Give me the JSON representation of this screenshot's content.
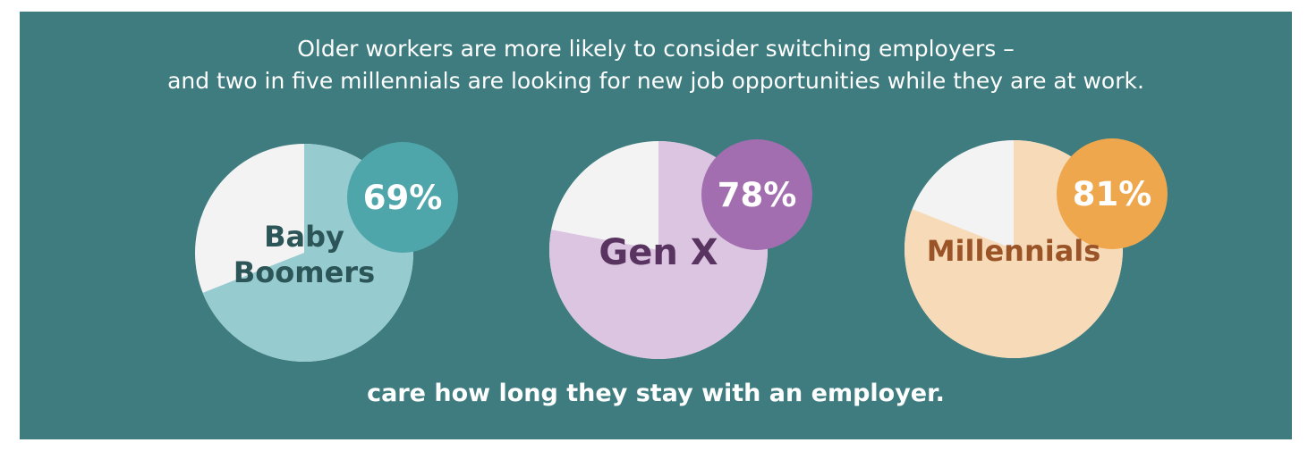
{
  "headline": {
    "line1": "Older workers are more likely to consider switching employers –",
    "line2": "and two in five millennials are looking for new job opportunities while they are at work."
  },
  "footer": "care how long they stay with an employer.",
  "colors": {
    "background": "#3e7c7f",
    "remainder": "#f3f3f3"
  },
  "chart_data": {
    "type": "pie",
    "pies": [
      {
        "name_lines": [
          "Baby",
          "Boomers"
        ],
        "value": 69,
        "value_label": "69%",
        "slice_color": "#96ccd0",
        "badge_color": "#4fa6aa",
        "name_color": "#2c5558"
      },
      {
        "name_lines": [
          "Gen X"
        ],
        "value": 78,
        "value_label": "78%",
        "slice_color": "#dbc5e1",
        "badge_color": "#a36eb0",
        "name_color": "#5a3460"
      },
      {
        "name_lines": [
          "Millennials"
        ],
        "value": 81,
        "value_label": "81%",
        "slice_color": "#f7dbb9",
        "badge_color": "#efa74d",
        "name_color": "#9a5428"
      }
    ]
  }
}
